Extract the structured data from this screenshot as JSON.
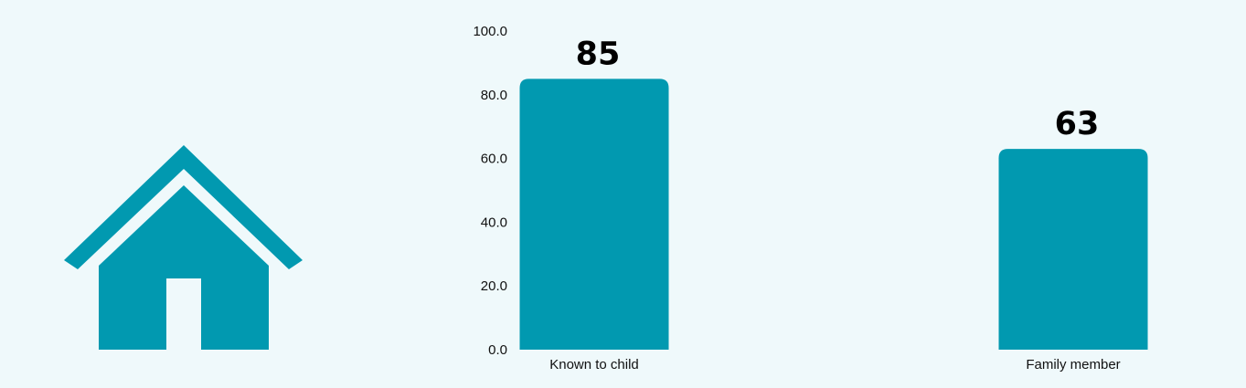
{
  "colors": {
    "background": "#eff9fb",
    "bar": "#0199b0",
    "icon": "#0199b0",
    "text": "#111111"
  },
  "icon": "house-icon",
  "chart_data": {
    "type": "bar",
    "categories": [
      "Known to child",
      "Family member"
    ],
    "values": [
      85,
      63
    ],
    "data_labels": [
      "85",
      "63"
    ],
    "ylim": [
      0,
      100
    ],
    "yticks": [
      "0.0",
      "20.0",
      "40.0",
      "60.0",
      "80.0",
      "100.0"
    ],
    "title": "",
    "xlabel": "",
    "ylabel": "",
    "grid": false,
    "legend": "none"
  }
}
